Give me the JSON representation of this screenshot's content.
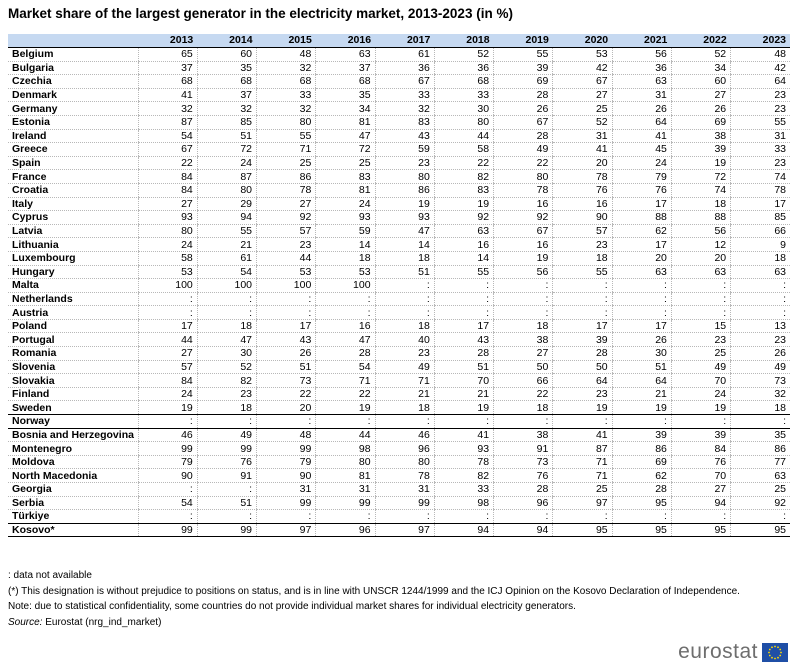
{
  "title": "Market share of the largest generator in the electricity market, 2013-2023 (in %)",
  "chart_data": {
    "type": "table",
    "title": "Market share of the largest generator in the electricity market, 2013-2023 (in %)",
    "columns": [
      "2013",
      "2014",
      "2015",
      "2016",
      "2017",
      "2018",
      "2019",
      "2020",
      "2021",
      "2022",
      "2023"
    ],
    "rows": [
      {
        "country": "Belgium",
        "values": [
          "65",
          "60",
          "48",
          "63",
          "61",
          "52",
          "55",
          "53",
          "56",
          "52",
          "48"
        ]
      },
      {
        "country": "Bulgaria",
        "values": [
          "37",
          "35",
          "32",
          "37",
          "36",
          "36",
          "39",
          "42",
          "36",
          "34",
          "42"
        ]
      },
      {
        "country": "Czechia",
        "values": [
          "68",
          "68",
          "68",
          "68",
          "67",
          "68",
          "69",
          "67",
          "63",
          "60",
          "64"
        ]
      },
      {
        "country": "Denmark",
        "values": [
          "41",
          "37",
          "33",
          "35",
          "33",
          "33",
          "28",
          "27",
          "31",
          "27",
          "23"
        ]
      },
      {
        "country": "Germany",
        "values": [
          "32",
          "32",
          "32",
          "34",
          "32",
          "30",
          "26",
          "25",
          "26",
          "26",
          "23"
        ]
      },
      {
        "country": "Estonia",
        "values": [
          "87",
          "85",
          "80",
          "81",
          "83",
          "80",
          "67",
          "52",
          "64",
          "69",
          "55"
        ]
      },
      {
        "country": "Ireland",
        "values": [
          "54",
          "51",
          "55",
          "47",
          "43",
          "44",
          "28",
          "31",
          "41",
          "38",
          "31"
        ]
      },
      {
        "country": "Greece",
        "values": [
          "67",
          "72",
          "71",
          "72",
          "59",
          "58",
          "49",
          "41",
          "45",
          "39",
          "33"
        ]
      },
      {
        "country": "Spain",
        "values": [
          "22",
          "24",
          "25",
          "25",
          "23",
          "22",
          "22",
          "20",
          "24",
          "19",
          "23"
        ]
      },
      {
        "country": "France",
        "values": [
          "84",
          "87",
          "86",
          "83",
          "80",
          "82",
          "80",
          "78",
          "79",
          "72",
          "74"
        ]
      },
      {
        "country": "Croatia",
        "values": [
          "84",
          "80",
          "78",
          "81",
          "86",
          "83",
          "78",
          "76",
          "76",
          "74",
          "78"
        ]
      },
      {
        "country": "Italy",
        "values": [
          "27",
          "29",
          "27",
          "24",
          "19",
          "19",
          "16",
          "16",
          "17",
          "18",
          "17"
        ]
      },
      {
        "country": "Cyprus",
        "values": [
          "93",
          "94",
          "92",
          "93",
          "93",
          "92",
          "92",
          "90",
          "88",
          "88",
          "85"
        ]
      },
      {
        "country": "Latvia",
        "values": [
          "80",
          "55",
          "57",
          "59",
          "47",
          "63",
          "67",
          "57",
          "62",
          "56",
          "66"
        ]
      },
      {
        "country": "Lithuania",
        "values": [
          "24",
          "21",
          "23",
          "14",
          "14",
          "16",
          "16",
          "23",
          "17",
          "12",
          "9"
        ]
      },
      {
        "country": "Luxembourg",
        "values": [
          "58",
          "61",
          "44",
          "18",
          "18",
          "14",
          "19",
          "18",
          "20",
          "20",
          "18"
        ]
      },
      {
        "country": "Hungary",
        "values": [
          "53",
          "54",
          "53",
          "53",
          "51",
          "55",
          "56",
          "55",
          "63",
          "63",
          "63"
        ]
      },
      {
        "country": "Malta",
        "values": [
          "100",
          "100",
          "100",
          "100",
          ":",
          ":",
          ":",
          ":",
          ":",
          ":",
          ":"
        ]
      },
      {
        "country": "Netherlands",
        "values": [
          ":",
          ":",
          ":",
          ":",
          ":",
          ":",
          ":",
          ":",
          ":",
          ":",
          ":"
        ]
      },
      {
        "country": "Austria",
        "values": [
          ":",
          ":",
          ":",
          ":",
          ":",
          ":",
          ":",
          ":",
          ":",
          ":",
          ":"
        ]
      },
      {
        "country": "Poland",
        "values": [
          "17",
          "18",
          "17",
          "16",
          "18",
          "17",
          "18",
          "17",
          "17",
          "15",
          "13"
        ]
      },
      {
        "country": "Portugal",
        "values": [
          "44",
          "47",
          "43",
          "47",
          "40",
          "43",
          "38",
          "39",
          "26",
          "23",
          "23"
        ]
      },
      {
        "country": "Romania",
        "values": [
          "27",
          "30",
          "26",
          "28",
          "23",
          "28",
          "27",
          "28",
          "30",
          "25",
          "26"
        ]
      },
      {
        "country": "Slovenia",
        "values": [
          "57",
          "52",
          "51",
          "54",
          "49",
          "51",
          "50",
          "50",
          "51",
          "49",
          "49"
        ]
      },
      {
        "country": "Slovakia",
        "values": [
          "84",
          "82",
          "73",
          "71",
          "71",
          "70",
          "66",
          "64",
          "64",
          "70",
          "73"
        ]
      },
      {
        "country": "Finland",
        "values": [
          "24",
          "23",
          "22",
          "22",
          "21",
          "21",
          "22",
          "23",
          "21",
          "24",
          "32"
        ]
      },
      {
        "country": "Sweden",
        "values": [
          "19",
          "18",
          "20",
          "19",
          "18",
          "19",
          "18",
          "19",
          "19",
          "19",
          "18"
        ]
      },
      {
        "country": "Norway",
        "values": [
          ":",
          ":",
          ":",
          ":",
          ":",
          ":",
          ":",
          ":",
          ":",
          ":",
          ":"
        ]
      },
      {
        "country": "Bosnia and Herzegovina",
        "values": [
          "46",
          "49",
          "48",
          "44",
          "46",
          "41",
          "38",
          "41",
          "39",
          "39",
          "35"
        ]
      },
      {
        "country": "Montenegro",
        "values": [
          "99",
          "99",
          "99",
          "98",
          "96",
          "93",
          "91",
          "87",
          "86",
          "84",
          "86"
        ]
      },
      {
        "country": "Moldova",
        "values": [
          "79",
          "76",
          "79",
          "80",
          "80",
          "78",
          "73",
          "71",
          "69",
          "76",
          "77"
        ]
      },
      {
        "country": "North Macedonia",
        "values": [
          "90",
          "91",
          "90",
          "81",
          "78",
          "82",
          "76",
          "71",
          "62",
          "70",
          "63"
        ]
      },
      {
        "country": "Georgia",
        "values": [
          ":",
          ":",
          "31",
          "31",
          "31",
          "33",
          "28",
          "25",
          "28",
          "27",
          "25"
        ]
      },
      {
        "country": "Serbia",
        "values": [
          "54",
          "51",
          "99",
          "99",
          "99",
          "98",
          "96",
          "97",
          "95",
          "94",
          "92"
        ]
      },
      {
        "country": "Türkiye",
        "values": [
          ":",
          ":",
          ":",
          ":",
          ":",
          ":",
          ":",
          ":",
          ":",
          ":",
          ":"
        ]
      },
      {
        "country": "Kosovo*",
        "values": [
          "99",
          "99",
          "97",
          "96",
          "97",
          "94",
          "94",
          "95",
          "95",
          "95",
          "95"
        ]
      }
    ]
  },
  "notes": {
    "na": ": data not available",
    "kosovo": "(*)  This designation is without prejudice to positions on status, and is in line with UNSCR 1244/1999 and the ICJ Opinion on the Kosovo Declaration of Independence.",
    "confidentiality": "Note: due to statistical confidentiality, some countries do not provide individual market shares for individual electricity generators.",
    "source_label": "Source:",
    "source_text": "Eurostat (nrg_ind_market)"
  },
  "logo": {
    "text": "eurostat",
    "icon": "eu-flag-icon",
    "flag_color": "#1f4fa6",
    "star_color": "#ffdd00"
  },
  "colors": {
    "header_bg": "#c6d9f1",
    "separator": "#000000",
    "gridline": "#b8b8b8"
  }
}
